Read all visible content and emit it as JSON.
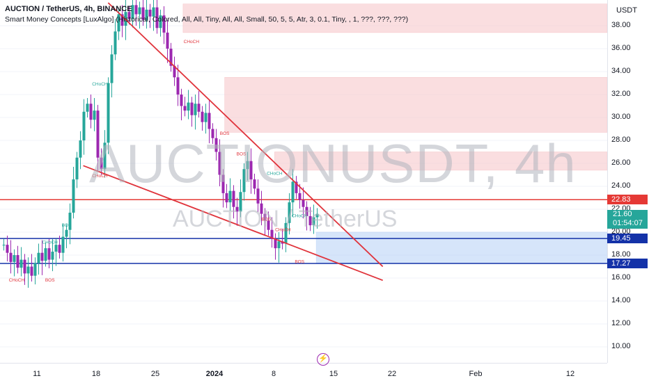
{
  "header": {
    "title": "AUCTION / TetherUS, 4h, BINANCE",
    "indicator": "Smart Money Concepts [LuxAlgo] (Historical, Colored, All, All, Tiny, All, All, Small, 50, 5, 5, Atr, 3, 0.1, Tiny, , 1, ???, ???, ???)"
  },
  "watermark": {
    "symbol": "AUCTIONUSDT, 4h",
    "name": "AUCTION / TetherUS"
  },
  "axis": {
    "currency": "USDT",
    "y_ticks": [
      "38.00",
      "36.00",
      "34.00",
      "32.00",
      "30.00",
      "28.00",
      "26.00",
      "24.00",
      "22.00",
      "20.00",
      "18.00",
      "16.00",
      "14.00",
      "12.00",
      "10.00"
    ],
    "x_ticks": [
      {
        "label": "11",
        "bold": false
      },
      {
        "label": "18",
        "bold": false
      },
      {
        "label": "25",
        "bold": false
      },
      {
        "label": "2024",
        "bold": true
      },
      {
        "label": "8",
        "bold": false
      },
      {
        "label": "15",
        "bold": false
      },
      {
        "label": "22",
        "bold": false
      },
      {
        "label": "Feb",
        "bold": false
      },
      {
        "label": "12",
        "bold": false
      }
    ]
  },
  "price_labels": {
    "red_line": "22.83",
    "current_price": "21.60",
    "countdown": "01:54:07",
    "blue_top": "19.45",
    "blue_bottom": "17.27"
  },
  "colors": {
    "up": "#26a69a",
    "down": "#9c27b0",
    "trend": "#e0333b",
    "supply_zone": "#f8c9cc",
    "demand_zone": "#bcd4f7",
    "blue_line": "#1432a8",
    "red_level": "#e53935"
  },
  "chart_data": {
    "type": "candlestick",
    "title": "AUCTION / TetherUS, 4h, BINANCE",
    "ylim": [
      9,
      40
    ],
    "y_scale": "log",
    "x_range_days": [
      "2023-12-04",
      "2024-02-16"
    ],
    "smc_labels": [
      {
        "text": "CHoCH",
        "date": "2023-12-06",
        "price": 15.7,
        "color": "#e0333b"
      },
      {
        "text": "BOS",
        "date": "2023-12-10",
        "price": 15.7,
        "color": "#e0333b"
      },
      {
        "text": "CHoCH",
        "date": "2023-12-10",
        "price": 19.0,
        "color": "#26a69a"
      },
      {
        "text": "BOS",
        "date": "2023-12-12",
        "price": 20.5,
        "color": "#26a69a"
      },
      {
        "text": "CHoCH",
        "date": "2023-12-16",
        "price": 32.8,
        "color": "#26a69a"
      },
      {
        "text": "CHoCH",
        "date": "2023-12-16",
        "price": 24.8,
        "color": "#e0333b"
      },
      {
        "text": "CHoCH",
        "date": "2023-12-27",
        "price": 36.5,
        "color": "#e0333b"
      },
      {
        "text": "BOS",
        "date": "2023-12-31",
        "price": 28.5,
        "color": "#e0333b"
      },
      {
        "text": "BOS",
        "date": "2024-01-02",
        "price": 26.7,
        "color": "#e0333b"
      },
      {
        "text": "CHoCH",
        "date": "2024-01-06",
        "price": 25.0,
        "color": "#26a69a"
      },
      {
        "text": "BOS",
        "date": "2024-01-05",
        "price": 21.0,
        "color": "#e0333b"
      },
      {
        "text": "CHoCH",
        "date": "2024-01-07",
        "price": 20.1,
        "color": "#e0333b"
      },
      {
        "text": "CHoCH",
        "date": "2024-01-09",
        "price": 21.3,
        "color": "#26a69a"
      },
      {
        "text": "BOS",
        "date": "2024-01-09",
        "price": 17.3,
        "color": "#e0333b"
      }
    ],
    "zones": [
      {
        "type": "supply",
        "from": "2023-12-26",
        "to": "2024-02-16",
        "low": 37.4,
        "high": 39.9
      },
      {
        "type": "supply",
        "from": "2023-12-31",
        "to": "2024-02-16",
        "low": 28.7,
        "high": 33.5
      },
      {
        "type": "supply",
        "from": "2024-01-06",
        "to": "2024-02-16",
        "low": 25.4,
        "high": 27.0
      },
      {
        "type": "demand",
        "from": "2024-01-11",
        "to": "2024-02-16",
        "low": 17.3,
        "high": 20.0
      }
    ],
    "levels": [
      {
        "price": 22.83,
        "color": "#e53935"
      },
      {
        "price": 19.45,
        "color": "#1432a8"
      },
      {
        "price": 17.27,
        "color": "#1432a8"
      }
    ],
    "trendlines": [
      {
        "from": {
          "date": "2023-12-17",
          "price": 40.0
        },
        "to": {
          "date": "2024-01-19",
          "price": 17.0
        }
      },
      {
        "from": {
          "date": "2023-12-14",
          "price": 25.8
        },
        "to": {
          "date": "2024-01-19",
          "price": 15.8
        }
      }
    ],
    "last_price": 21.6
  }
}
